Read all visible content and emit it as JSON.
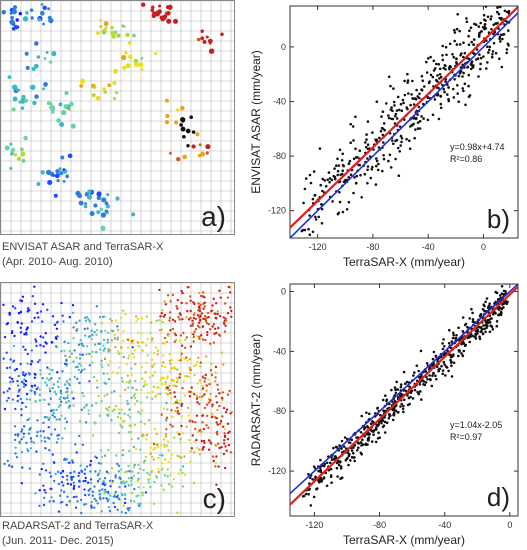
{
  "panels": {
    "a": {
      "letter": "a)"
    },
    "b": {
      "letter": "b)"
    },
    "c": {
      "letter": "c)"
    },
    "d": {
      "letter": "d)"
    }
  },
  "captions": {
    "top": [
      "ENVISAT ASAR and  TerraSAR-X",
      "(Apr. 2010- Aug. 2010)"
    ],
    "bottom": [
      "RADARSAT-2 and  TerraSAR-X",
      "(Jun. 2011- Dec. 2015)"
    ]
  },
  "map_colors": [
    "#1a1aff",
    "#1f4bff",
    "#2f7fd8",
    "#3fb6c6",
    "#6fd0a0",
    "#b8d832",
    "#e8e01c",
    "#e8a41c",
    "#d2561c",
    "#c81e1e",
    "#111111"
  ],
  "chart_data": [
    {
      "type": "scatter",
      "panel": "b",
      "xlabel": "TerraSAR-X (mm/year)",
      "ylabel": "ENVISAT ASAR (mm/year)",
      "xlim": [
        -140,
        25
      ],
      "ylim": [
        -140,
        30
      ],
      "xticks": [
        -120,
        -80,
        -40,
        0
      ],
      "yticks": [
        -120,
        -80,
        -40,
        0
      ],
      "fit_label": "y=0.98x+4.74",
      "r2_label": "R²=0.86",
      "fit": {
        "slope": 0.98,
        "intercept": 4.74,
        "color": "#e02020"
      },
      "identity_line": {
        "slope": 1,
        "intercept": 0,
        "color": "#2030d0"
      },
      "n_points": 520,
      "noise_sd": 13
    },
    {
      "type": "scatter",
      "panel": "d",
      "xlabel": "TerraSAR-X (mm/year)",
      "ylabel": "RADARSAT-2 (mm/year)",
      "xlim": [
        -135,
        5
      ],
      "ylim": [
        -150,
        5
      ],
      "xticks": [
        -120,
        -80,
        -40,
        0
      ],
      "yticks": [
        -120,
        -80,
        -40,
        0
      ],
      "fit_label": "y=1.04x-2.05",
      "r2_label": "R²=0.97",
      "fit": {
        "slope": 1.04,
        "intercept": -2.05,
        "color": "#e02020"
      },
      "identity_line": {
        "slope": 1,
        "intercept": 0,
        "color": "#2030d0"
      },
      "n_points": 650,
      "noise_sd": 6
    }
  ]
}
